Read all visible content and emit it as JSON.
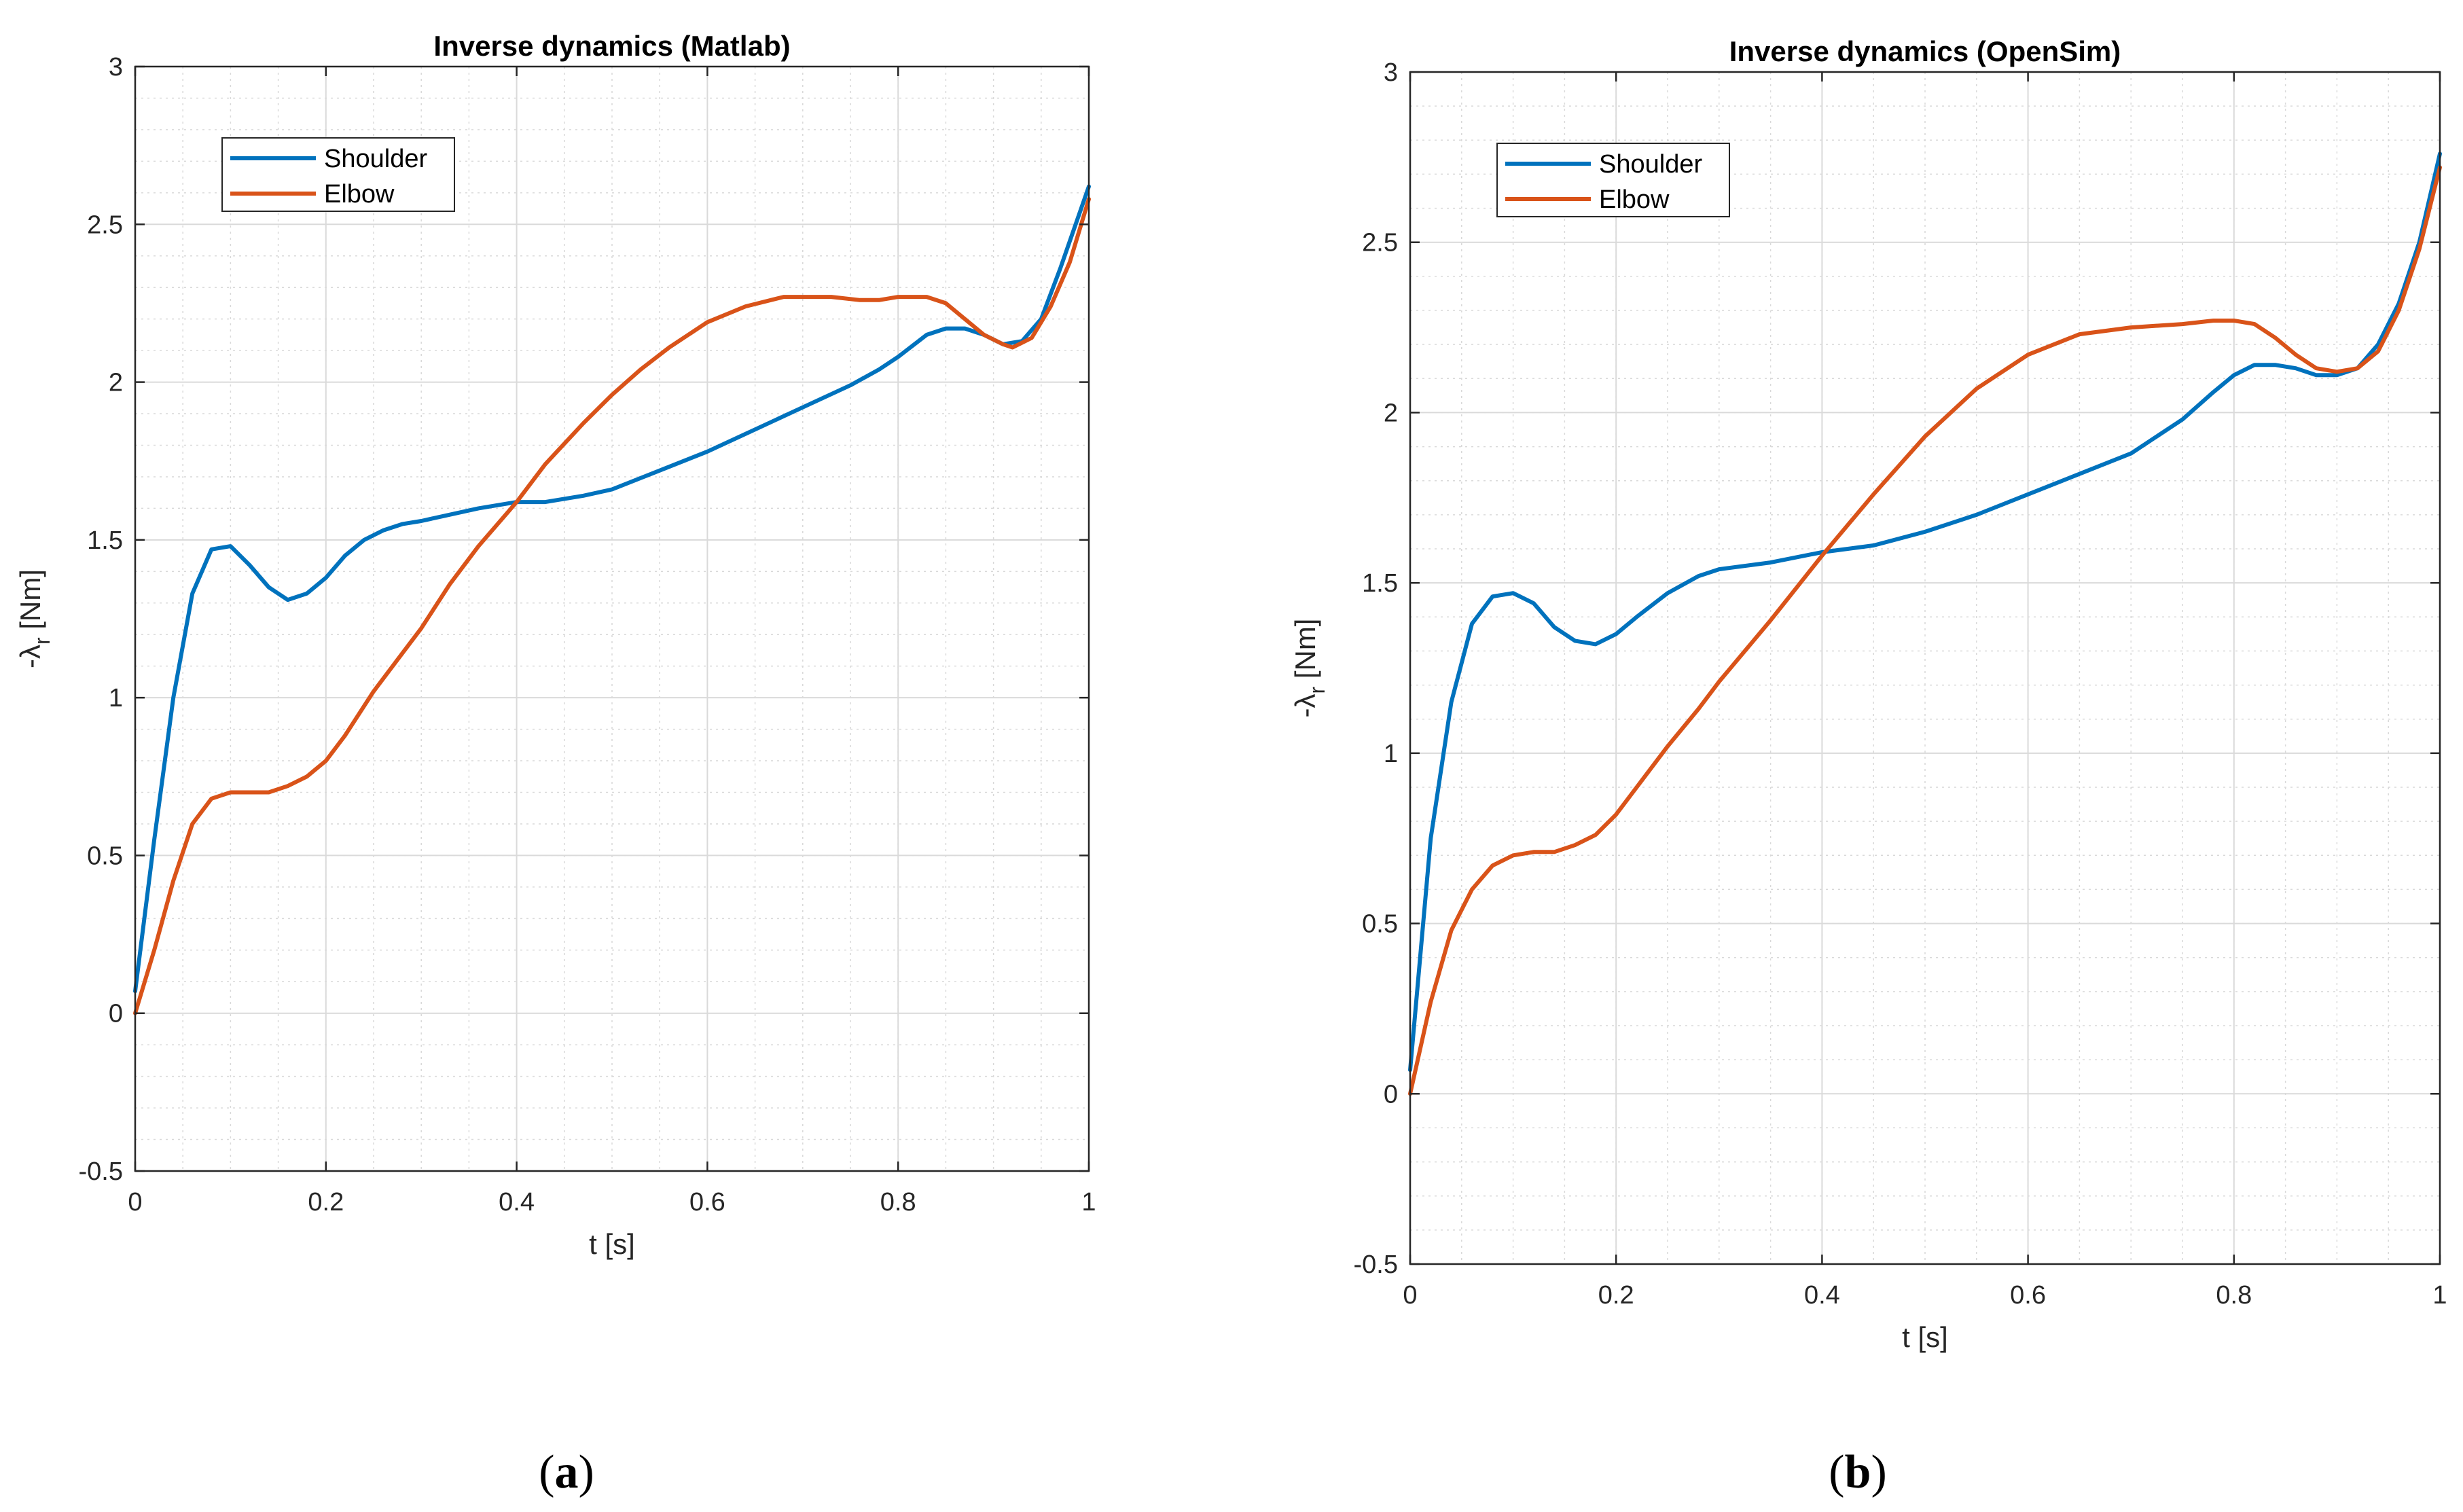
{
  "chart_data": [
    {
      "type": "line",
      "panel": "(a)",
      "panel_letter": "a",
      "title": "Inverse dynamics (Matlab)",
      "xlabel": "t [s]",
      "ylabel": "-λ",
      "ylabel_sub": "r",
      "ylabel_unit": " [Nm]",
      "xlim": [
        0,
        1
      ],
      "ylim": [
        -0.5,
        3
      ],
      "xticks": [
        0,
        0.2,
        0.4,
        0.6,
        0.8,
        1
      ],
      "xtick_labels": [
        "0",
        "0.2",
        "0.4",
        "0.6",
        "0.8",
        "1"
      ],
      "yticks": [
        -0.5,
        0,
        0.5,
        1,
        1.5,
        2,
        2.5,
        3
      ],
      "ytick_labels": [
        "-0.5",
        "0",
        "0.5",
        "1",
        "1.5",
        "2",
        "2.5",
        "3"
      ],
      "grid": true,
      "minor_grid": true,
      "legend_position": "top-left",
      "series": [
        {
          "name": "Shoulder",
          "color": "#0072BD",
          "x": [
            0,
            0.02,
            0.04,
            0.06,
            0.08,
            0.1,
            0.12,
            0.14,
            0.16,
            0.18,
            0.2,
            0.22,
            0.24,
            0.26,
            0.28,
            0.3,
            0.33,
            0.36,
            0.4,
            0.43,
            0.47,
            0.5,
            0.55,
            0.6,
            0.65,
            0.7,
            0.75,
            0.78,
            0.8,
            0.83,
            0.85,
            0.87,
            0.89,
            0.91,
            0.93,
            0.95,
            0.97,
            1.0
          ],
          "y": [
            0.07,
            0.55,
            1.0,
            1.33,
            1.47,
            1.48,
            1.42,
            1.35,
            1.31,
            1.33,
            1.38,
            1.45,
            1.5,
            1.53,
            1.55,
            1.56,
            1.58,
            1.6,
            1.62,
            1.62,
            1.64,
            1.66,
            1.72,
            1.78,
            1.85,
            1.92,
            1.99,
            2.04,
            2.08,
            2.15,
            2.17,
            2.17,
            2.15,
            2.12,
            2.13,
            2.2,
            2.36,
            2.62
          ]
        },
        {
          "name": "Elbow",
          "color": "#D95319",
          "x": [
            0,
            0.02,
            0.04,
            0.06,
            0.08,
            0.1,
            0.12,
            0.14,
            0.16,
            0.18,
            0.2,
            0.22,
            0.25,
            0.28,
            0.3,
            0.33,
            0.36,
            0.4,
            0.43,
            0.47,
            0.5,
            0.53,
            0.56,
            0.6,
            0.64,
            0.68,
            0.7,
            0.73,
            0.76,
            0.78,
            0.8,
            0.83,
            0.85,
            0.87,
            0.89,
            0.91,
            0.92,
            0.94,
            0.96,
            0.98,
            1.0
          ],
          "y": [
            0.0,
            0.2,
            0.42,
            0.6,
            0.68,
            0.7,
            0.7,
            0.7,
            0.72,
            0.75,
            0.8,
            0.88,
            1.02,
            1.14,
            1.22,
            1.36,
            1.48,
            1.62,
            1.74,
            1.87,
            1.96,
            2.04,
            2.11,
            2.19,
            2.24,
            2.27,
            2.27,
            2.27,
            2.26,
            2.26,
            2.27,
            2.27,
            2.25,
            2.2,
            2.15,
            2.12,
            2.11,
            2.14,
            2.24,
            2.38,
            2.58
          ]
        }
      ]
    },
    {
      "type": "line",
      "panel": "(b)",
      "panel_letter": "b",
      "title": "Inverse dynamics (OpenSim)",
      "xlabel": "t [s]",
      "ylabel": "-λ",
      "ylabel_sub": "r",
      "ylabel_unit": " [Nm]",
      "xlim": [
        0,
        1
      ],
      "ylim": [
        -0.5,
        3
      ],
      "xticks": [
        0,
        0.2,
        0.4,
        0.6,
        0.8,
        1
      ],
      "xtick_labels": [
        "0",
        "0.2",
        "0.4",
        "0.6",
        "0.8",
        "1"
      ],
      "yticks": [
        -0.5,
        0,
        0.5,
        1,
        1.5,
        2,
        2.5,
        3
      ],
      "ytick_labels": [
        "-0.5",
        "0",
        "0.5",
        "1",
        "1.5",
        "2",
        "2.5",
        "3"
      ],
      "grid": true,
      "minor_grid": true,
      "legend_position": "top-left",
      "series": [
        {
          "name": "Shoulder",
          "color": "#0072BD",
          "x": [
            0,
            0.02,
            0.04,
            0.06,
            0.08,
            0.1,
            0.12,
            0.14,
            0.16,
            0.18,
            0.2,
            0.22,
            0.25,
            0.28,
            0.3,
            0.35,
            0.4,
            0.45,
            0.5,
            0.55,
            0.6,
            0.65,
            0.7,
            0.75,
            0.78,
            0.8,
            0.82,
            0.84,
            0.86,
            0.88,
            0.9,
            0.92,
            0.94,
            0.96,
            0.98,
            1.0
          ],
          "y": [
            0.07,
            0.75,
            1.15,
            1.38,
            1.46,
            1.47,
            1.44,
            1.37,
            1.33,
            1.32,
            1.35,
            1.4,
            1.47,
            1.52,
            1.54,
            1.56,
            1.59,
            1.61,
            1.65,
            1.7,
            1.76,
            1.82,
            1.88,
            1.98,
            2.06,
            2.11,
            2.14,
            2.14,
            2.13,
            2.11,
            2.11,
            2.13,
            2.2,
            2.32,
            2.5,
            2.76
          ]
        },
        {
          "name": "Elbow",
          "color": "#D95319",
          "x": [
            0,
            0.02,
            0.04,
            0.06,
            0.08,
            0.1,
            0.12,
            0.14,
            0.16,
            0.18,
            0.2,
            0.22,
            0.25,
            0.28,
            0.3,
            0.35,
            0.4,
            0.45,
            0.5,
            0.55,
            0.6,
            0.65,
            0.7,
            0.75,
            0.78,
            0.8,
            0.82,
            0.84,
            0.86,
            0.88,
            0.9,
            0.92,
            0.94,
            0.96,
            0.98,
            1.0
          ],
          "y": [
            0.0,
            0.27,
            0.48,
            0.6,
            0.67,
            0.7,
            0.71,
            0.71,
            0.73,
            0.76,
            0.82,
            0.9,
            1.02,
            1.13,
            1.21,
            1.39,
            1.58,
            1.76,
            1.93,
            2.07,
            2.17,
            2.23,
            2.25,
            2.26,
            2.27,
            2.27,
            2.26,
            2.22,
            2.17,
            2.13,
            2.12,
            2.13,
            2.18,
            2.3,
            2.48,
            2.72
          ]
        }
      ]
    }
  ]
}
